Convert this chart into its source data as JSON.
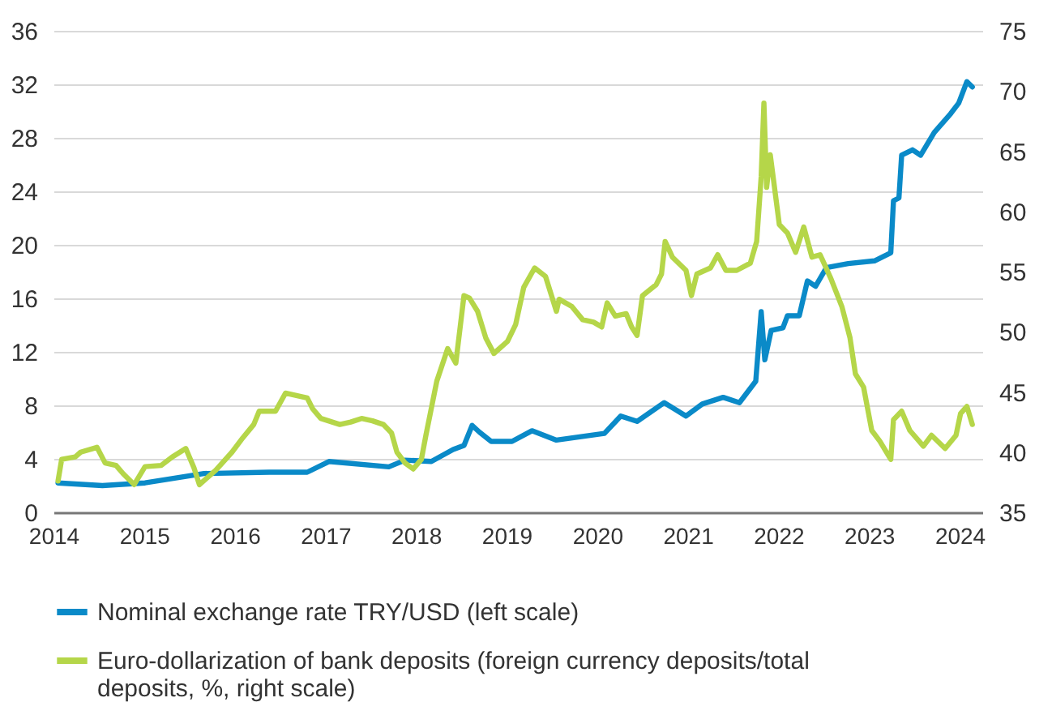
{
  "chart_data": {
    "type": "line",
    "legend": "bottom",
    "grid": "y",
    "xlim": [
      2014,
      2024.25
    ],
    "xticks": [
      2014,
      2015,
      2016,
      2017,
      2018,
      2019,
      2020,
      2021,
      2022,
      2023,
      2024
    ],
    "ylim": [
      0,
      36
    ],
    "yticks": [
      0,
      4,
      8,
      12,
      16,
      20,
      24,
      28,
      32,
      36
    ],
    "y2lim": [
      35,
      75
    ],
    "y2ticks": [
      35,
      40,
      45,
      50,
      55,
      60,
      65,
      70,
      75
    ],
    "series": [
      {
        "name": "Nominal exchange rate TRY/USD (left scale)",
        "color": "#0a8ac8",
        "x": [
          2014.05,
          2014.54,
          2015.01,
          2015.66,
          2016.38,
          2016.8,
          2017.04,
          2017.7,
          2017.88,
          2018.17,
          2018.41,
          2018.53,
          2018.62,
          2018.7,
          2018.83,
          2019.06,
          2019.28,
          2019.55,
          2020.08,
          2020.26,
          2020.44,
          2020.74,
          2020.98,
          2021.16,
          2021.39,
          2021.57,
          2021.75,
          2021.81,
          2021.85,
          2021.92,
          2022.05,
          2022.1,
          2022.23,
          2022.32,
          2022.41,
          2022.53,
          2022.77,
          2023.06,
          2023.24,
          2023.27,
          2023.33,
          2023.36,
          2023.48,
          2023.57,
          2023.72,
          2023.9,
          2023.99,
          2024.08,
          2024.14
        ],
        "values": [
          2.2,
          2.0,
          2.2,
          2.9,
          3.0,
          3.0,
          3.8,
          3.4,
          3.9,
          3.8,
          4.7,
          5.0,
          6.5,
          6.0,
          5.3,
          5.3,
          6.1,
          5.4,
          5.9,
          7.2,
          6.8,
          8.2,
          7.2,
          8.1,
          8.6,
          8.2,
          9.8,
          15.0,
          11.4,
          13.6,
          13.8,
          14.7,
          14.7,
          17.3,
          16.9,
          18.3,
          18.6,
          18.8,
          19.4,
          23.3,
          23.5,
          26.7,
          27.1,
          26.7,
          28.4,
          29.8,
          30.6,
          32.2,
          31.8
        ]
      },
      {
        "name": "Euro-dollarization of bank deposits (foreign currency deposits/total deposits, %, right scale)",
        "color": "#b5d649",
        "axis": "y2",
        "x": [
          2014.05,
          2014.09,
          2014.24,
          2014.3,
          2014.48,
          2014.57,
          2014.69,
          2014.77,
          2014.89,
          2015.01,
          2015.19,
          2015.31,
          2015.46,
          2015.55,
          2015.61,
          2015.79,
          2015.97,
          2016.09,
          2016.21,
          2016.27,
          2016.45,
          2016.56,
          2016.68,
          2016.8,
          2016.86,
          2016.95,
          2017.16,
          2017.28,
          2017.4,
          2017.52,
          2017.64,
          2017.73,
          2017.79,
          2017.88,
          2017.97,
          2018.06,
          2018.11,
          2018.23,
          2018.35,
          2018.44,
          2018.53,
          2018.59,
          2018.68,
          2018.77,
          2018.86,
          2019.01,
          2019.1,
          2019.19,
          2019.31,
          2019.43,
          2019.55,
          2019.58,
          2019.72,
          2019.84,
          2019.96,
          2020.05,
          2020.11,
          2020.2,
          2020.32,
          2020.38,
          2020.44,
          2020.5,
          2020.65,
          2020.71,
          2020.75,
          2020.83,
          2020.98,
          2021.04,
          2021.1,
          2021.25,
          2021.33,
          2021.42,
          2021.54,
          2021.69,
          2021.76,
          2021.81,
          2021.84,
          2021.87,
          2021.91,
          2022.01,
          2022.1,
          2022.19,
          2022.28,
          2022.37,
          2022.46,
          2022.58,
          2022.7,
          2022.79,
          2022.85,
          2022.94,
          2023.03,
          2023.12,
          2023.24,
          2023.27,
          2023.36,
          2023.45,
          2023.6,
          2023.69,
          2023.84,
          2023.96,
          2024.01,
          2024.08,
          2024.14
        ],
        "values": [
          37.6,
          39.4,
          39.6,
          40.0,
          40.4,
          39.1,
          38.9,
          38.2,
          37.3,
          38.8,
          38.9,
          39.6,
          40.3,
          38.7,
          37.3,
          38.5,
          40.0,
          41.2,
          42.3,
          43.4,
          43.4,
          44.9,
          44.7,
          44.5,
          43.6,
          42.8,
          42.3,
          42.5,
          42.8,
          42.6,
          42.3,
          41.6,
          40.0,
          39.1,
          38.6,
          39.4,
          41.4,
          45.9,
          48.6,
          47.4,
          53.0,
          52.8,
          51.7,
          49.5,
          48.2,
          49.2,
          50.6,
          53.7,
          55.3,
          54.6,
          51.7,
          52.7,
          52.1,
          51.0,
          50.8,
          50.4,
          52.4,
          51.3,
          51.5,
          50.4,
          49.7,
          53.0,
          53.9,
          54.8,
          57.5,
          56.2,
          55.1,
          53.0,
          54.8,
          55.3,
          56.4,
          55.1,
          55.1,
          55.7,
          57.5,
          62.9,
          69.0,
          62.0,
          64.7,
          58.9,
          58.2,
          56.6,
          58.7,
          56.2,
          56.4,
          54.4,
          52.1,
          49.5,
          46.5,
          45.4,
          41.8,
          40.9,
          39.4,
          42.7,
          43.4,
          41.8,
          40.5,
          41.4,
          40.3,
          41.4,
          43.2,
          43.8,
          42.3
        ]
      }
    ]
  }
}
